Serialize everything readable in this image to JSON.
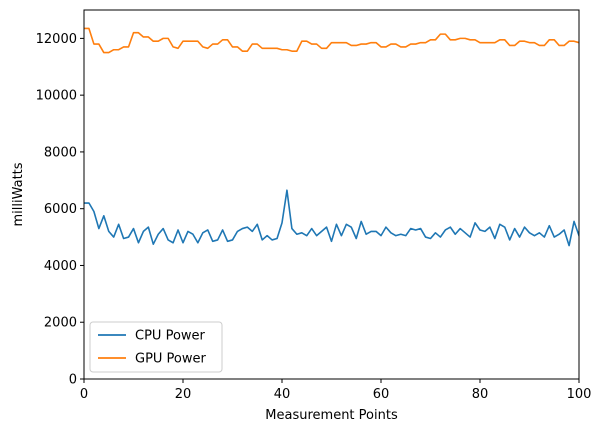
{
  "chart_data": {
    "type": "line",
    "title": "",
    "xlabel": "Measurement Points",
    "ylabel": "milliWatts",
    "xlim": [
      0,
      100
    ],
    "ylim": [
      0,
      13000
    ],
    "xticks": [
      0,
      20,
      40,
      60,
      80,
      100
    ],
    "yticks": [
      0,
      2000,
      4000,
      6000,
      8000,
      10000,
      12000
    ],
    "grid": false,
    "legend_position": "lower-left",
    "series": [
      {
        "name": "CPU Power",
        "color": "#1f77b4",
        "x": [
          0,
          1,
          2,
          3,
          4,
          5,
          6,
          7,
          8,
          9,
          10,
          11,
          12,
          13,
          14,
          15,
          16,
          17,
          18,
          19,
          20,
          21,
          22,
          23,
          24,
          25,
          26,
          27,
          28,
          29,
          30,
          31,
          32,
          33,
          34,
          35,
          36,
          37,
          38,
          39,
          40,
          41,
          42,
          43,
          44,
          45,
          46,
          47,
          48,
          49,
          50,
          51,
          52,
          53,
          54,
          55,
          56,
          57,
          58,
          59,
          60,
          61,
          62,
          63,
          64,
          65,
          66,
          67,
          68,
          69,
          70,
          71,
          72,
          73,
          74,
          75,
          76,
          77,
          78,
          79,
          80,
          81,
          82,
          83,
          84,
          85,
          86,
          87,
          88,
          89,
          90,
          91,
          92,
          93,
          94,
          95,
          96,
          97,
          98,
          99,
          100
        ],
        "values": [
          6200,
          6200,
          5900,
          5300,
          5750,
          5200,
          5000,
          5450,
          4950,
          5000,
          5300,
          4800,
          5200,
          5350,
          4750,
          5100,
          5300,
          4900,
          4800,
          5250,
          4800,
          5200,
          5100,
          4800,
          5150,
          5250,
          4850,
          4900,
          5250,
          4850,
          4900,
          5200,
          5300,
          5350,
          5200,
          5450,
          4900,
          5050,
          4900,
          4950,
          5500,
          6650,
          5300,
          5100,
          5150,
          5050,
          5300,
          5050,
          5200,
          5350,
          4850,
          5450,
          5050,
          5450,
          5350,
          4950,
          5550,
          5100,
          5200,
          5200,
          5050,
          5350,
          5150,
          5050,
          5100,
          5050,
          5300,
          5250,
          5300,
          5000,
          4950,
          5150,
          5000,
          5250,
          5350,
          5100,
          5300,
          5150,
          5000,
          5500,
          5250,
          5200,
          5350,
          4950,
          5450,
          5350,
          4900,
          5300,
          5000,
          5350,
          5150,
          5050,
          5150,
          5000,
          5400,
          5000,
          5100,
          5250,
          4700,
          5550,
          5050
        ]
      },
      {
        "name": "GPU Power",
        "color": "#ff7f0e",
        "x": [
          0,
          1,
          2,
          3,
          4,
          5,
          6,
          7,
          8,
          9,
          10,
          11,
          12,
          13,
          14,
          15,
          16,
          17,
          18,
          19,
          20,
          21,
          22,
          23,
          24,
          25,
          26,
          27,
          28,
          29,
          30,
          31,
          32,
          33,
          34,
          35,
          36,
          37,
          38,
          39,
          40,
          41,
          42,
          43,
          44,
          45,
          46,
          47,
          48,
          49,
          50,
          51,
          52,
          53,
          54,
          55,
          56,
          57,
          58,
          59,
          60,
          61,
          62,
          63,
          64,
          65,
          66,
          67,
          68,
          69,
          70,
          71,
          72,
          73,
          74,
          75,
          76,
          77,
          78,
          79,
          80,
          81,
          82,
          83,
          84,
          85,
          86,
          87,
          88,
          89,
          90,
          91,
          92,
          93,
          94,
          95,
          96,
          97,
          98,
          99,
          100
        ],
        "values": [
          12350,
          12350,
          11800,
          11800,
          11500,
          11500,
          11600,
          11600,
          11700,
          11700,
          12200,
          12200,
          12050,
          12050,
          11900,
          11900,
          12000,
          12000,
          11700,
          11650,
          11900,
          11900,
          11900,
          11900,
          11700,
          11650,
          11800,
          11800,
          11950,
          11950,
          11700,
          11700,
          11550,
          11550,
          11800,
          11800,
          11650,
          11650,
          11650,
          11650,
          11600,
          11600,
          11550,
          11550,
          11900,
          11900,
          11800,
          11800,
          11650,
          11650,
          11850,
          11850,
          11850,
          11850,
          11750,
          11750,
          11800,
          11800,
          11850,
          11850,
          11700,
          11700,
          11800,
          11800,
          11700,
          11700,
          11800,
          11800,
          11850,
          11850,
          11950,
          11950,
          12150,
          12150,
          11950,
          11950,
          12000,
          12000,
          11950,
          11950,
          11850,
          11850,
          11850,
          11850,
          11950,
          11950,
          11750,
          11750,
          11900,
          11900,
          11850,
          11850,
          11750,
          11750,
          11950,
          11950,
          11750,
          11750,
          11900,
          11900,
          11850
        ]
      }
    ]
  }
}
